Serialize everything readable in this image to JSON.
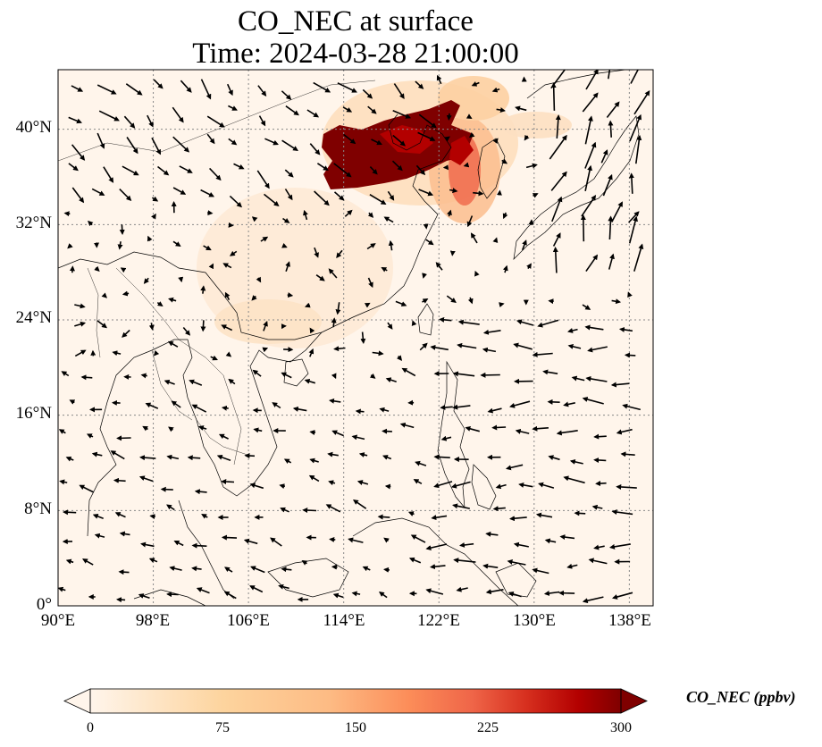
{
  "title": {
    "line1": "CO_NEC at surface",
    "line2": "Time: 2024-03-28 21:00:00"
  },
  "map": {
    "lon_range": [
      90,
      140
    ],
    "lat_range": [
      0,
      45
    ],
    "lon_ticks": [
      "90°E",
      "98°E",
      "106°E",
      "114°E",
      "122°E",
      "130°E",
      "138°E"
    ],
    "lon_values": [
      90,
      98,
      106,
      114,
      122,
      130,
      138
    ],
    "lat_ticks": [
      "0°",
      "8°N",
      "16°N",
      "24°N",
      "32°N",
      "40°N"
    ],
    "lat_values": [
      0,
      8,
      16,
      24,
      32,
      40
    ],
    "gridlines": true,
    "background_color": "#fff5eb",
    "colormap": "OrRd"
  },
  "colorbar": {
    "label": "CO_NEC (ppbv)",
    "ticks": [
      "0",
      "75",
      "150",
      "225",
      "300"
    ],
    "tick_values": [
      0,
      75,
      150,
      225,
      300
    ],
    "range": [
      0,
      300
    ],
    "extend": "both",
    "colors": [
      "#fff5eb",
      "#fdd49e",
      "#fdbb84",
      "#fc8d59",
      "#ef6548",
      "#d7301f",
      "#b30000",
      "#7f0000"
    ]
  }
}
